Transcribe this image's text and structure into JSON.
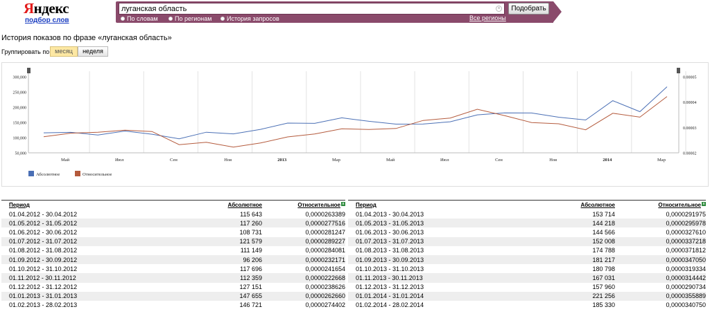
{
  "header": {
    "logo_first": "Я",
    "logo_rest": "ндекс",
    "logo_sub": "подбор слов",
    "search_value": "луганская область",
    "submit_label": "Подобрать",
    "radios": [
      {
        "label": "По словам",
        "selected": false
      },
      {
        "label": "По регионам",
        "selected": false
      },
      {
        "label": "История запросов",
        "selected": true
      }
    ],
    "all_regions": "Все регионы"
  },
  "page": {
    "title": "История показов по фразе «луганская область»",
    "group_label": "Группировать по:",
    "group_month": "месяц",
    "group_week": "неделя"
  },
  "chart_data": {
    "type": "line",
    "x_tick_labels": [
      "Май",
      "Июл",
      "Сен",
      "Ноя",
      "2013",
      "Мар",
      "Май",
      "Июл",
      "Сен",
      "Ноя",
      "2014",
      "Мар"
    ],
    "y_left_ticks": [
      "300,000",
      "250,000",
      "200,000",
      "150,000",
      "100,000",
      "50,000"
    ],
    "y_left_range": [
      50000,
      300000
    ],
    "y_right_ticks": [
      "0.00005",
      "0.00004",
      "0.00003",
      "0.00002"
    ],
    "y_right_range": [
      2e-05,
      5e-05
    ],
    "series": [
      {
        "name": "Абсолютное",
        "color": "#4a6fb5",
        "axis": "left",
        "values": [
          115643,
          117260,
          108731,
          121579,
          111149,
          96206,
          117696,
          112359,
          127151,
          147655,
          146721,
          165000,
          153714,
          144218,
          144566,
          152008,
          174788,
          181217,
          180798,
          167031,
          157960,
          221256,
          185330,
          267000
        ]
      },
      {
        "name": "Относительное",
        "color": "#b45a3c",
        "axis": "right",
        "values": [
          2.63389e-05,
          2.77516e-05,
          2.81247e-05,
          2.89227e-05,
          2.84081e-05,
          2.32171e-05,
          2.41654e-05,
          2.22668e-05,
          2.38626e-05,
          2.6266e-05,
          2.74402e-05,
          2.95e-05,
          2.91975e-05,
          2.95978e-05,
          3.2761e-05,
          3.37218e-05,
          3.71812e-05,
          3.4705e-05,
          3.19334e-05,
          3.14442e-05,
          2.90734e-05,
          3.55889e-05,
          3.4075e-05,
          4.22e-05
        ]
      }
    ],
    "legend": [
      "Абсолютное",
      "Относительное"
    ],
    "legend_position": "bottom-left",
    "grid": true
  },
  "table": {
    "headers": {
      "period": "Период",
      "absolute": "Абсолютное",
      "relative": "Относительное"
    },
    "left_rows": [
      [
        "01.04.2012 - 30.04.2012",
        "115 643",
        "0,0000263389"
      ],
      [
        "01.05.2012 - 31.05.2012",
        "117 260",
        "0,0000277516"
      ],
      [
        "01.06.2012 - 30.06.2012",
        "108 731",
        "0,0000281247"
      ],
      [
        "01.07.2012 - 31.07.2012",
        "121 579",
        "0,0000289227"
      ],
      [
        "01.08.2012 - 31.08.2012",
        "111 149",
        "0,0000284081"
      ],
      [
        "01.09.2012 - 30.09.2012",
        "96 206",
        "0,0000232171"
      ],
      [
        "01.10.2012 - 31.10.2012",
        "117 696",
        "0,0000241654"
      ],
      [
        "01.11.2012 - 30.11.2012",
        "112 359",
        "0,0000222668"
      ],
      [
        "01.12.2012 - 31.12.2012",
        "127 151",
        "0,0000238626"
      ],
      [
        "01.01.2013 - 31.01.2013",
        "147 655",
        "0,0000262660"
      ],
      [
        "01.02.2013 - 28.02.2013",
        "146 721",
        "0,0000274402"
      ]
    ],
    "right_rows": [
      [
        "01.04.2013 - 30.04.2013",
        "153 714",
        "0,0000291975"
      ],
      [
        "01.05.2013 - 31.05.2013",
        "144 218",
        "0,0000295978"
      ],
      [
        "01.06.2013 - 30.06.2013",
        "144 566",
        "0,0000327610"
      ],
      [
        "01.07.2013 - 31.07.2013",
        "152 008",
        "0,0000337218"
      ],
      [
        "01.08.2013 - 31.08.2013",
        "174 788",
        "0,0000371812"
      ],
      [
        "01.09.2013 - 30.09.2013",
        "181 217",
        "0,0000347050"
      ],
      [
        "01.10.2013 - 31.10.2013",
        "180 798",
        "0,0000319334"
      ],
      [
        "01.11.2013 - 30.11.2013",
        "167 031",
        "0,0000314442"
      ],
      [
        "01.12.2013 - 31.12.2013",
        "157 960",
        "0,0000290734"
      ],
      [
        "01.01.2014 - 31.01.2014",
        "221 256",
        "0,0000355889"
      ],
      [
        "01.02.2014 - 28.02.2014",
        "185 330",
        "0,0000340750"
      ]
    ]
  }
}
